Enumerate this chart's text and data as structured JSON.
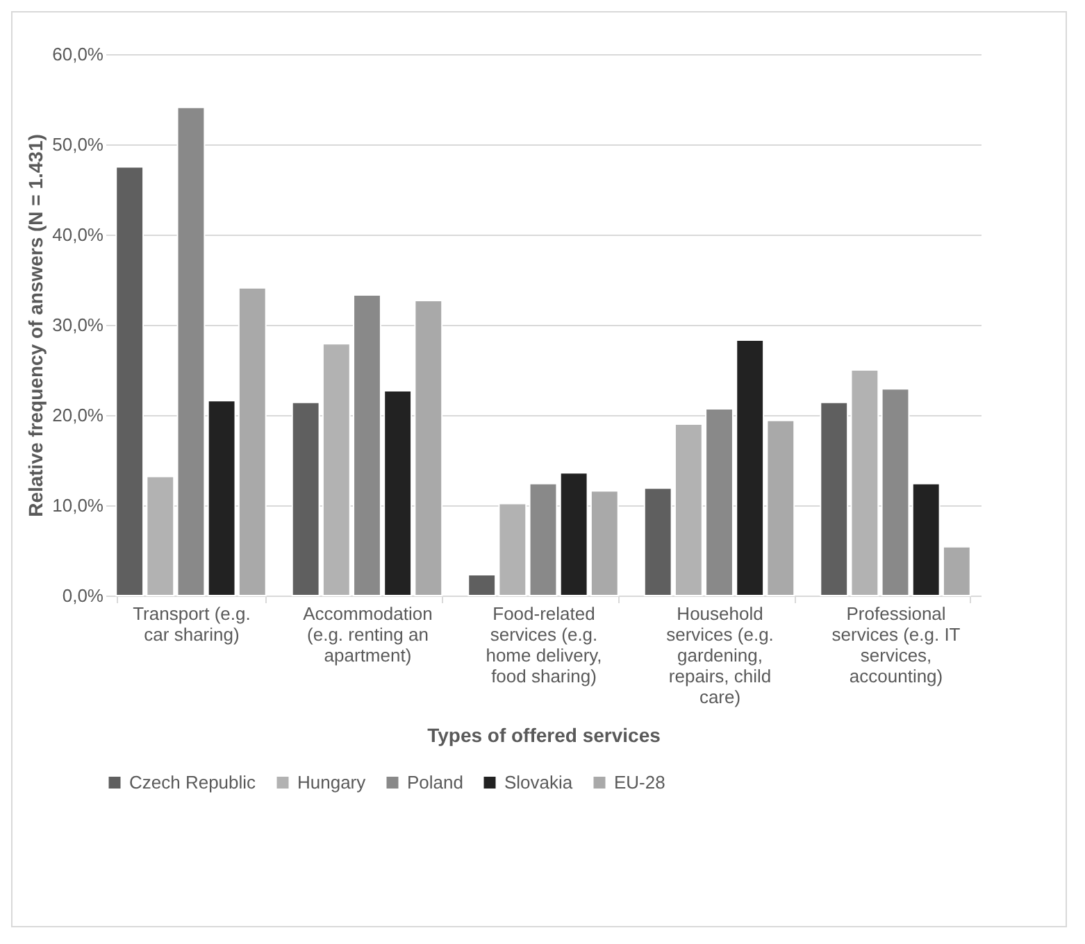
{
  "chart_data": {
    "type": "bar",
    "xlabel": "Types of offered services",
    "ylabel": "Relative frequency of answers (N = 1.431)",
    "categories": [
      "Transport (e.g. car sharing)",
      "Accommodation (e.g. renting an apartment)",
      "Food-related services (e.g. home delivery, food sharing)",
      "Household services (e.g. gardening, repairs, child care)",
      "Professional services (e.g. IT services, accounting)"
    ],
    "series": [
      {
        "name": "Czech Republic",
        "color": "#5f5f5f",
        "values": [
          47.5,
          21.4,
          2.3,
          11.9,
          21.4
        ]
      },
      {
        "name": "Hungary",
        "color": "#b2b2b2",
        "values": [
          13.2,
          27.9,
          10.2,
          19.0,
          25.0
        ]
      },
      {
        "name": "Poland",
        "color": "#898989",
        "values": [
          54.1,
          33.3,
          12.4,
          20.7,
          22.9
        ]
      },
      {
        "name": "Slovakia",
        "color": "#222222",
        "values": [
          21.6,
          22.7,
          13.6,
          28.3,
          12.4
        ]
      },
      {
        "name": "EU-28",
        "color": "#a9a9a9",
        "values": [
          34.1,
          32.7,
          11.6,
          19.4,
          5.4
        ]
      }
    ],
    "ylim": [
      0,
      60
    ],
    "yticks": [
      {
        "value": 0,
        "label": "0,0%"
      },
      {
        "value": 10,
        "label": "10,0%"
      },
      {
        "value": 20,
        "label": "20,0%"
      },
      {
        "value": 30,
        "label": "30,0%"
      },
      {
        "value": 40,
        "label": "40,0%"
      },
      {
        "value": 50,
        "label": "50,0%"
      },
      {
        "value": 60,
        "label": "60,0%"
      }
    ],
    "grid": "y",
    "legend": "bottom"
  }
}
